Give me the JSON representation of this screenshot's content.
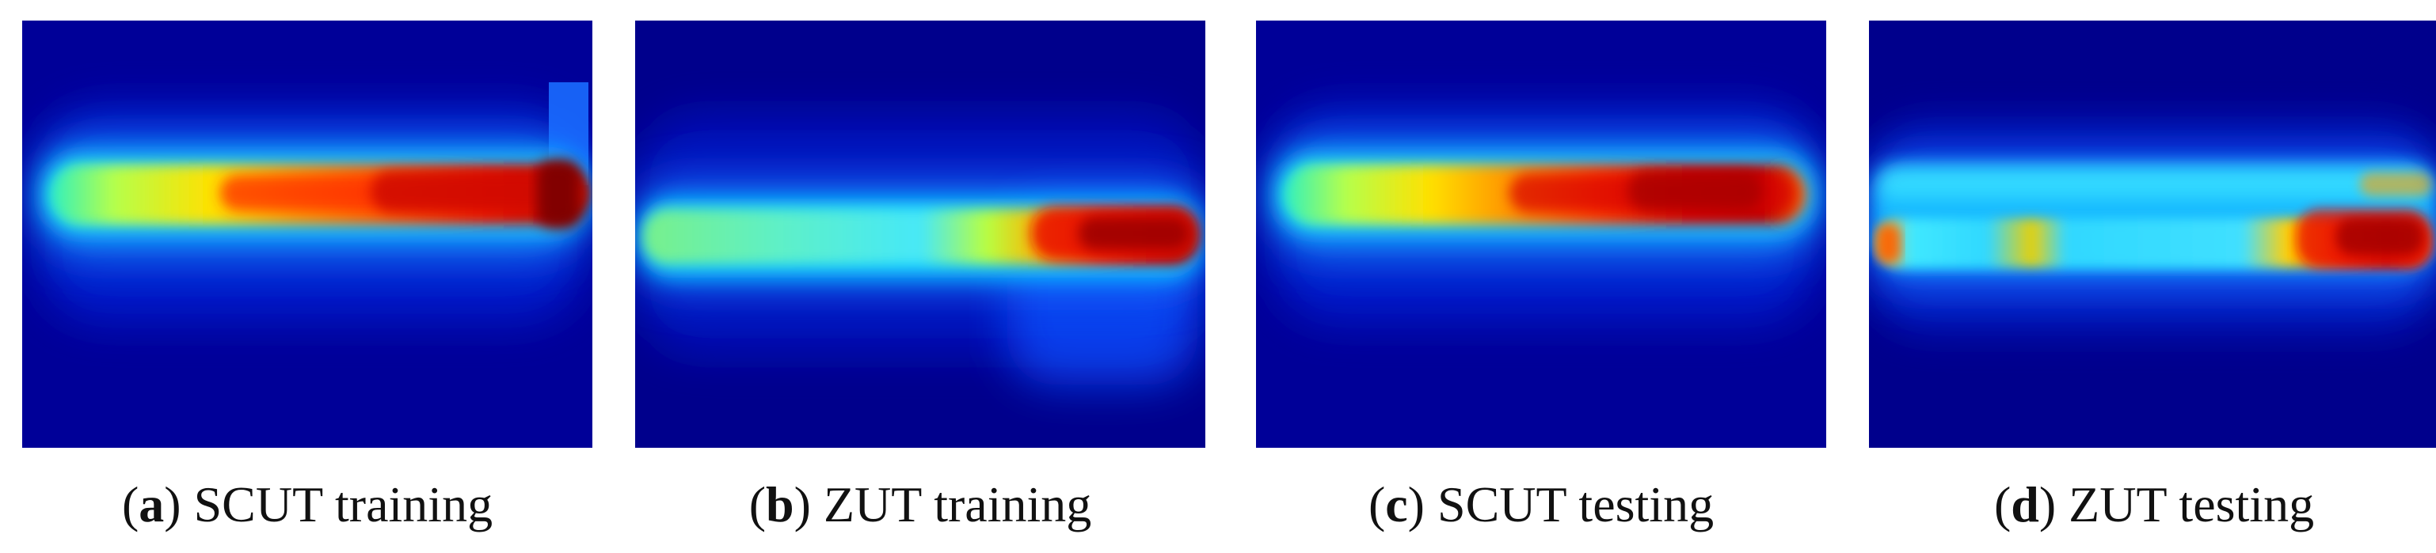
{
  "panels": [
    {
      "letter": "a",
      "caption": "SCUT training"
    },
    {
      "letter": "b",
      "caption": "ZUT training"
    },
    {
      "letter": "c",
      "caption": "SCUT testing"
    },
    {
      "letter": "d",
      "caption": "ZUT testing"
    }
  ],
  "colors": {
    "background": "#00008f",
    "mid": "#00ffff",
    "yellow": "#ffff00",
    "hot": "#ff0000",
    "max": "#800000"
  }
}
